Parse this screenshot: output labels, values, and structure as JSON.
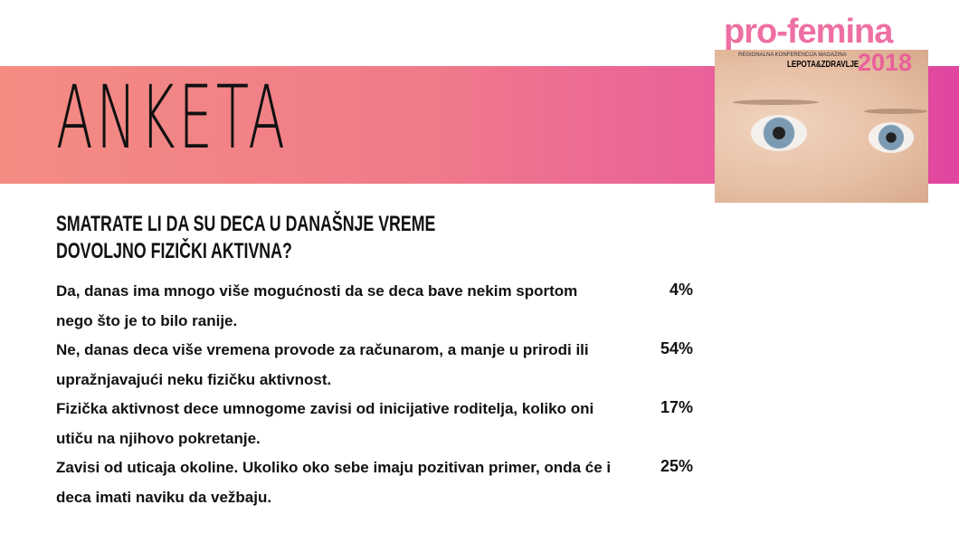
{
  "header": {
    "title": "ANKETA"
  },
  "logo": {
    "name": "pro-femina",
    "subtitle": "REGIONALNA KONFERENCIJA MAGAZINA",
    "magazine": "LEPOTA&ZDRAVLJE",
    "year": "2018"
  },
  "colors": {
    "banner_start": "#f48c82",
    "banner_end": "#e0459f",
    "logo": "#ee6fa3"
  },
  "survey": {
    "question": "SMATRATE LI DA SU DECA U DANAŠNJE VREME DOVOLJNO FIZIČKI AKTIVNA?",
    "answers": [
      {
        "text": "Da, danas ima mnogo više mogućnosti da se deca bave nekim sportom nego što je to bilo ranije.",
        "percent": "4%"
      },
      {
        "text": "Ne, danas deca više vremena provode za računarom, a manje u prirodi ili upražnjavajući neku fizičku aktivnost.",
        "percent": "54%"
      },
      {
        "text": "Fizička aktivnost dece umnogome zavisi od inicijative roditelja, koliko oni utiču na njihovo pokretanje.",
        "percent": "17%"
      },
      {
        "text": "Zavisi od uticaja okoline. Ukoliko oko sebe imaju pozitivan primer, onda će i deca imati naviku da vežbaju.",
        "percent": "25%"
      }
    ]
  }
}
